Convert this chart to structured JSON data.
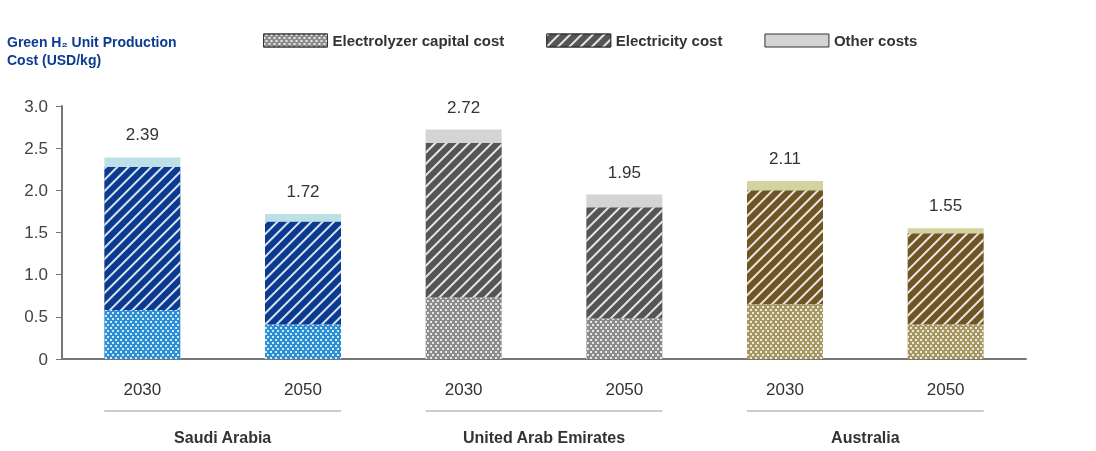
{
  "chart_data": {
    "type": "bar",
    "stacked": true,
    "ylabel": "Green H₂ Unit Production Cost (USD/kg)",
    "categories": [
      "2030",
      "2050",
      "2030",
      "2050",
      "2030",
      "2050"
    ],
    "annotations": [
      "Saudi Arabia",
      "United Arab Emirates",
      "Australia"
    ],
    "series": [
      {
        "name": "Electrolyzer capital cost",
        "colors": [
          "#2b8fd8",
          "#2b8fd8",
          "#8c8c8c",
          "#8c8c8c",
          "#a69763",
          "#a69763"
        ],
        "values": [
          0.58,
          0.41,
          0.73,
          0.48,
          0.65,
          0.41
        ]
      },
      {
        "name": "Electricity cost",
        "colors": [
          "#0b3b91",
          "#0b3b91",
          "#555555",
          "#555555",
          "#6f5525",
          "#6f5525"
        ],
        "values": [
          1.7,
          1.22,
          1.83,
          1.32,
          1.35,
          1.08
        ]
      },
      {
        "name": "Other costs",
        "colors": [
          "#bde0e6",
          "#bde0e6",
          "#d4d4d4",
          "#d4d4d4",
          "#d2d49f",
          "#d2d49f"
        ],
        "values": [
          0.11,
          0.09,
          0.16,
          0.15,
          0.11,
          0.06
        ]
      }
    ],
    "totals": [
      "2.39",
      "1.72",
      "2.72",
      "1.95",
      "2.11",
      "1.55"
    ],
    "ylim": [
      0,
      3.0
    ],
    "yticks": [
      0,
      {
        "value": 0.5,
        "label": "0.5"
      },
      {
        "value": 1,
        "label": "1.0"
      },
      {
        "value": 1.5,
        "label": "1.5"
      },
      {
        "value": 2,
        "label": "2.0"
      },
      {
        "value": 2.5,
        "label": "2.5"
      },
      {
        "value": 3,
        "label": "3.0"
      }
    ],
    "grid": false,
    "legend": "top"
  }
}
